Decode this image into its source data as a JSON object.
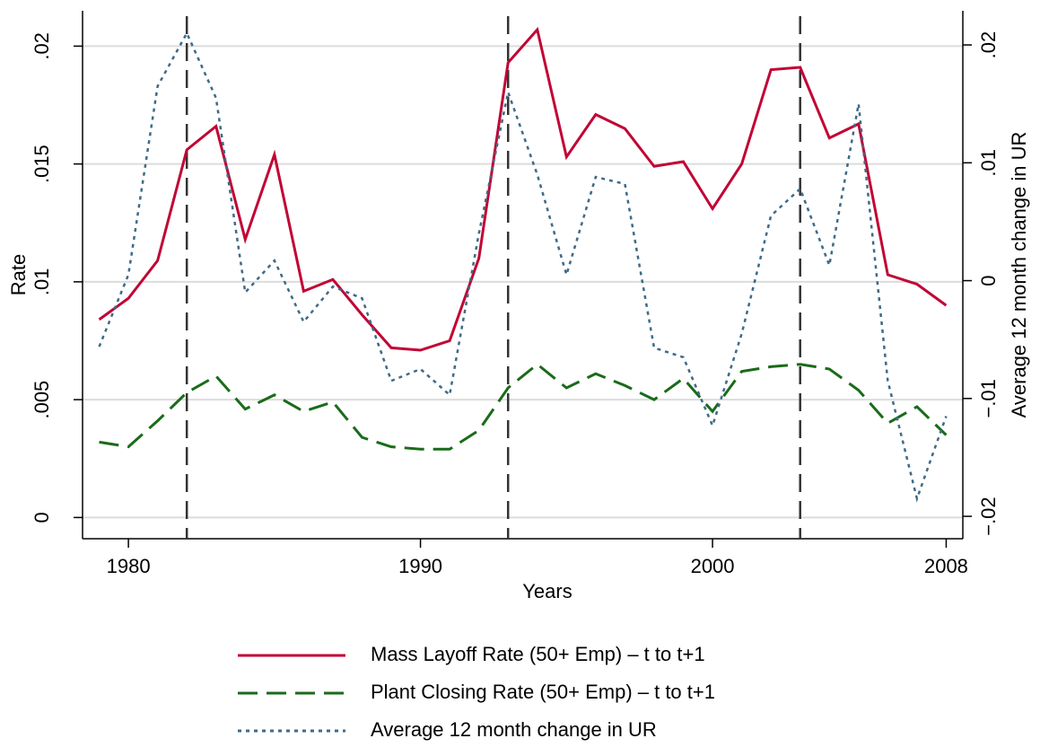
{
  "chart_data": {
    "type": "line",
    "x_label": "Years",
    "y_label": "Rate",
    "y2_label": "Average 12 month change in UR",
    "x": [
      1979,
      1980,
      1981,
      1982,
      1983,
      1984,
      1985,
      1986,
      1987,
      1988,
      1989,
      1990,
      1991,
      1992,
      1993,
      1994,
      1995,
      1996,
      1997,
      1998,
      1999,
      2000,
      2001,
      2002,
      2003,
      2004,
      2005,
      2006,
      2007,
      2008
    ],
    "series": [
      {
        "name": "Mass Layoff Rate (50+ Emp) – t to t+1",
        "color": "#c10534",
        "dash": "solid",
        "values": [
          0.0084,
          0.0093,
          0.0109,
          0.0156,
          0.0166,
          0.0118,
          0.0154,
          0.0096,
          0.0101,
          0.0086,
          0.0072,
          0.0071,
          0.0075,
          0.011,
          0.0193,
          0.0207,
          0.0153,
          0.0171,
          0.0165,
          0.0149,
          0.0151,
          0.0131,
          0.015,
          0.019,
          0.0191,
          0.0161,
          0.0167,
          0.0103,
          0.0099,
          0.009
        ]
      },
      {
        "name": "Plant Closing Rate (50+ Emp) – t to t+1",
        "color": "#1a6b1a",
        "dash": "dashed",
        "values": [
          0.0032,
          0.003,
          0.0041,
          0.0053,
          0.006,
          0.0046,
          0.0052,
          0.0045,
          0.0049,
          0.0034,
          0.003,
          0.0029,
          0.0029,
          0.0037,
          0.0055,
          0.0065,
          0.0055,
          0.0061,
          0.0056,
          0.005,
          0.0059,
          0.0045,
          0.0062,
          0.0064,
          0.0065,
          0.0063,
          0.0054,
          0.004,
          0.0047,
          0.0035
        ]
      },
      {
        "name": "Average 12 month change in UR",
        "color": "#3e6a87",
        "dash": "dotted",
        "axis": "y2",
        "values": [
          -0.0056,
          0.0005,
          0.0165,
          0.021,
          0.0155,
          -0.001,
          0.0017,
          -0.0035,
          -0.0005,
          -0.0015,
          -0.0085,
          -0.0075,
          -0.0097,
          0.004,
          0.016,
          0.009,
          0.0005,
          0.0088,
          0.0082,
          -0.0057,
          -0.0065,
          -0.0123,
          -0.0045,
          0.0055,
          0.0078,
          0.0013,
          0.015,
          -0.0085,
          -0.0185,
          -0.0115
        ]
      }
    ],
    "vlines": [
      1982,
      1993,
      2003
    ],
    "xlim": [
      1978.43,
      2008.57
    ],
    "xticks": [
      1980,
      1990,
      2000,
      2008
    ],
    "ylim": [
      -0.0009,
      0.0215
    ],
    "yticks": [
      {
        "value": 0,
        "label": "0"
      },
      {
        "value": 0.005,
        "label": ".005"
      },
      {
        "value": 0.01,
        "label": ".01"
      },
      {
        "value": 0.015,
        "label": ".015"
      },
      {
        "value": 0.02,
        "label": ".02"
      }
    ],
    "y2lim": [
      -0.0219,
      0.0229
    ],
    "y2ticks": [
      {
        "value": -0.02,
        "label": "−.02"
      },
      {
        "value": -0.01,
        "label": "−.01"
      },
      {
        "value": 0,
        "label": "0"
      },
      {
        "value": 0.01,
        "label": ".01"
      },
      {
        "value": 0.02,
        "label": ".02"
      }
    ],
    "grid": true
  }
}
